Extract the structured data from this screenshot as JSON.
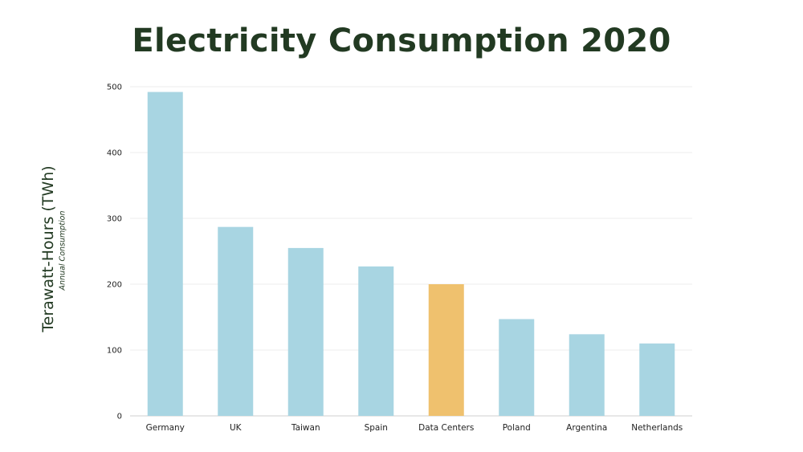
{
  "chart_data": {
    "type": "bar",
    "title": "Electricity Consumption 2020",
    "ylabel": "Terawatt-Hours (TWh)",
    "ysublabel": "Annual Consumption",
    "xlabel": "",
    "categories": [
      "Germany",
      "UK",
      "Taiwan",
      "Spain",
      "Data Centers",
      "Poland",
      "Argentina",
      "Netherlands"
    ],
    "values": [
      492,
      287,
      255,
      227,
      200,
      147,
      124,
      110
    ],
    "highlight": "Data Centers",
    "ylim": [
      0,
      500
    ],
    "yticks": [
      0,
      100,
      200,
      300,
      400,
      500
    ],
    "grid": true,
    "colors": {
      "bar": "#a8d5e2",
      "highlight": "#efc16e",
      "grid": "#ececec",
      "title": "#223a22"
    }
  }
}
